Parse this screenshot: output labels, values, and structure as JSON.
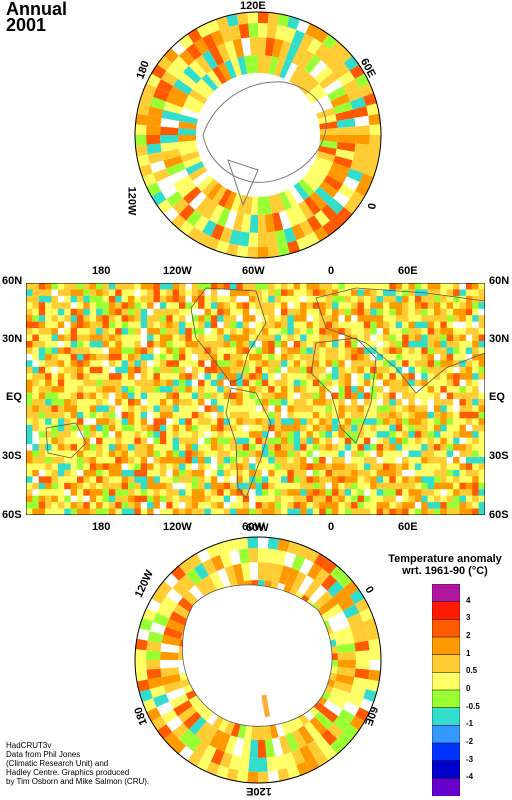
{
  "header": {
    "title_line1": "Annual",
    "title_line2": "2001"
  },
  "north_polar": {
    "labels": [
      "120E",
      "60E",
      "0",
      "120W",
      "180"
    ]
  },
  "world": {
    "top_lon_labels": [
      "180",
      "120W",
      "60W",
      "0",
      "60E"
    ],
    "bottom_lon_labels": [
      "180",
      "120W",
      "60W",
      "0",
      "60E"
    ],
    "lat_labels_left": [
      "60N",
      "30N",
      "EQ",
      "30S",
      "60S"
    ],
    "lat_labels_right": [
      "60N",
      "30N",
      "EQ",
      "30S",
      "60S"
    ]
  },
  "south_polar": {
    "labels": [
      "120W",
      "60W",
      "0",
      "60E",
      "120E",
      "180"
    ]
  },
  "legend": {
    "title_line1": "Temperature anomaly",
    "title_line2": "wrt. 1961-90  (°C)",
    "tick_labels": [
      "4",
      "3",
      "2",
      "1",
      "0.5",
      "0",
      "-0.5",
      "-1",
      "-2",
      "-3",
      "-4"
    ],
    "colors": [
      "#b0179e",
      "#ff1a00",
      "#ff5a00",
      "#ff9900",
      "#ffcc33",
      "#ffff66",
      "#99ff33",
      "#33ddcc",
      "#3399ff",
      "#0033ff",
      "#0000cc",
      "#6600cc"
    ]
  },
  "credits": {
    "line1": "HadCRUT3v",
    "line2": "Data from Phil Jones",
    "line3": "(Climatic Research Unit) and",
    "line4": "Hadley Centre.  Graphics produced",
    "line5": "by Tim Osborn and Mike Salmon (CRU)."
  }
}
